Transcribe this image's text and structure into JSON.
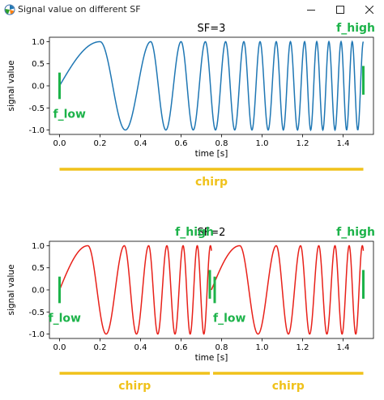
{
  "window": {
    "title": "Signal value on different SF",
    "icon": "matplotlib-icon",
    "controls": [
      "minimize-icon",
      "maximize-icon",
      "close-icon"
    ]
  },
  "colors": {
    "blue": "#1f77b4",
    "red": "#e8211a",
    "green": "#1db34a",
    "gold": "#f0c21b"
  },
  "chart_data": [
    {
      "type": "line",
      "title": "SF=3",
      "xlabel": "time [s]",
      "ylabel": "signal value",
      "xlim": [
        -0.05,
        1.55
      ],
      "ylim": [
        -1.1,
        1.1
      ],
      "xticks": [
        "0.0",
        "0.2",
        "0.4",
        "0.6",
        "0.8",
        "1.0",
        "1.2",
        "1.4"
      ],
      "xtick_values": [
        0.0,
        0.2,
        0.4,
        0.6,
        0.8,
        1.0,
        1.2,
        1.4
      ],
      "yticks": [
        "1.0",
        "0.5",
        "0.0",
        "-0.5",
        "-1.0"
      ],
      "ytick_values": [
        1.0,
        0.5,
        0.0,
        -0.5,
        -1.0
      ],
      "series": [
        {
          "function": "sine chirp",
          "color": "#1f77b4",
          "segments": [
            {
              "t_start": 0.0,
              "t_end": 1.5,
              "peak_times": [
                0.2,
                0.45,
                0.6,
                0.72,
                0.82,
                0.91,
                0.99,
                1.07,
                1.14,
                1.21,
                1.27,
                1.33,
                1.39,
                1.445,
                1.5
              ]
            }
          ]
        }
      ],
      "annotations": [
        {
          "text": "f_low",
          "x": 0.0,
          "color": "#1db34a"
        },
        {
          "text": "f_high",
          "x": 1.5,
          "color": "#1db34a"
        }
      ],
      "chirp_labels": [
        {
          "text": "chirp",
          "x_start": 0.0,
          "x_end": 1.5
        }
      ]
    },
    {
      "type": "line",
      "title": "SF=2",
      "xlabel": "time [s]",
      "ylabel": "signal value",
      "xlim": [
        -0.05,
        1.55
      ],
      "ylim": [
        -1.1,
        1.1
      ],
      "xticks": [
        "0.0",
        "0.2",
        "0.4",
        "0.6",
        "0.8",
        "1.0",
        "1.2",
        "1.4"
      ],
      "xtick_values": [
        0.0,
        0.2,
        0.4,
        0.6,
        0.8,
        1.0,
        1.2,
        1.4
      ],
      "yticks": [
        "1.0",
        "0.5",
        "0.0",
        "-0.5",
        "-1.0"
      ],
      "ytick_values": [
        1.0,
        0.5,
        0.0,
        -0.5,
        -1.0
      ],
      "series": [
        {
          "function": "sine chirp",
          "color": "#e8211a",
          "segments": [
            {
              "t_start": 0.0,
              "t_end": 0.75,
              "peak_times": [
                0.14,
                0.32,
                0.44,
                0.53,
                0.61,
                0.68,
                0.745
              ]
            },
            {
              "t_start": 0.75,
              "t_end": 1.5,
              "peak_times": [
                0.89,
                1.07,
                1.19,
                1.28,
                1.36,
                1.43,
                1.495
              ]
            }
          ]
        }
      ],
      "annotations": [
        {
          "text": "f_low",
          "x": 0.0,
          "color": "#1db34a"
        },
        {
          "text": "f_high",
          "x": 0.75,
          "color": "#1db34a"
        },
        {
          "text": "f_low",
          "x": 0.75,
          "color": "#1db34a"
        },
        {
          "text": "f_high",
          "x": 1.5,
          "color": "#1db34a"
        }
      ],
      "chirp_labels": [
        {
          "text": "chirp",
          "x_start": 0.0,
          "x_end": 0.75
        },
        {
          "text": "chirp",
          "x_start": 0.75,
          "x_end": 1.5
        }
      ]
    }
  ]
}
